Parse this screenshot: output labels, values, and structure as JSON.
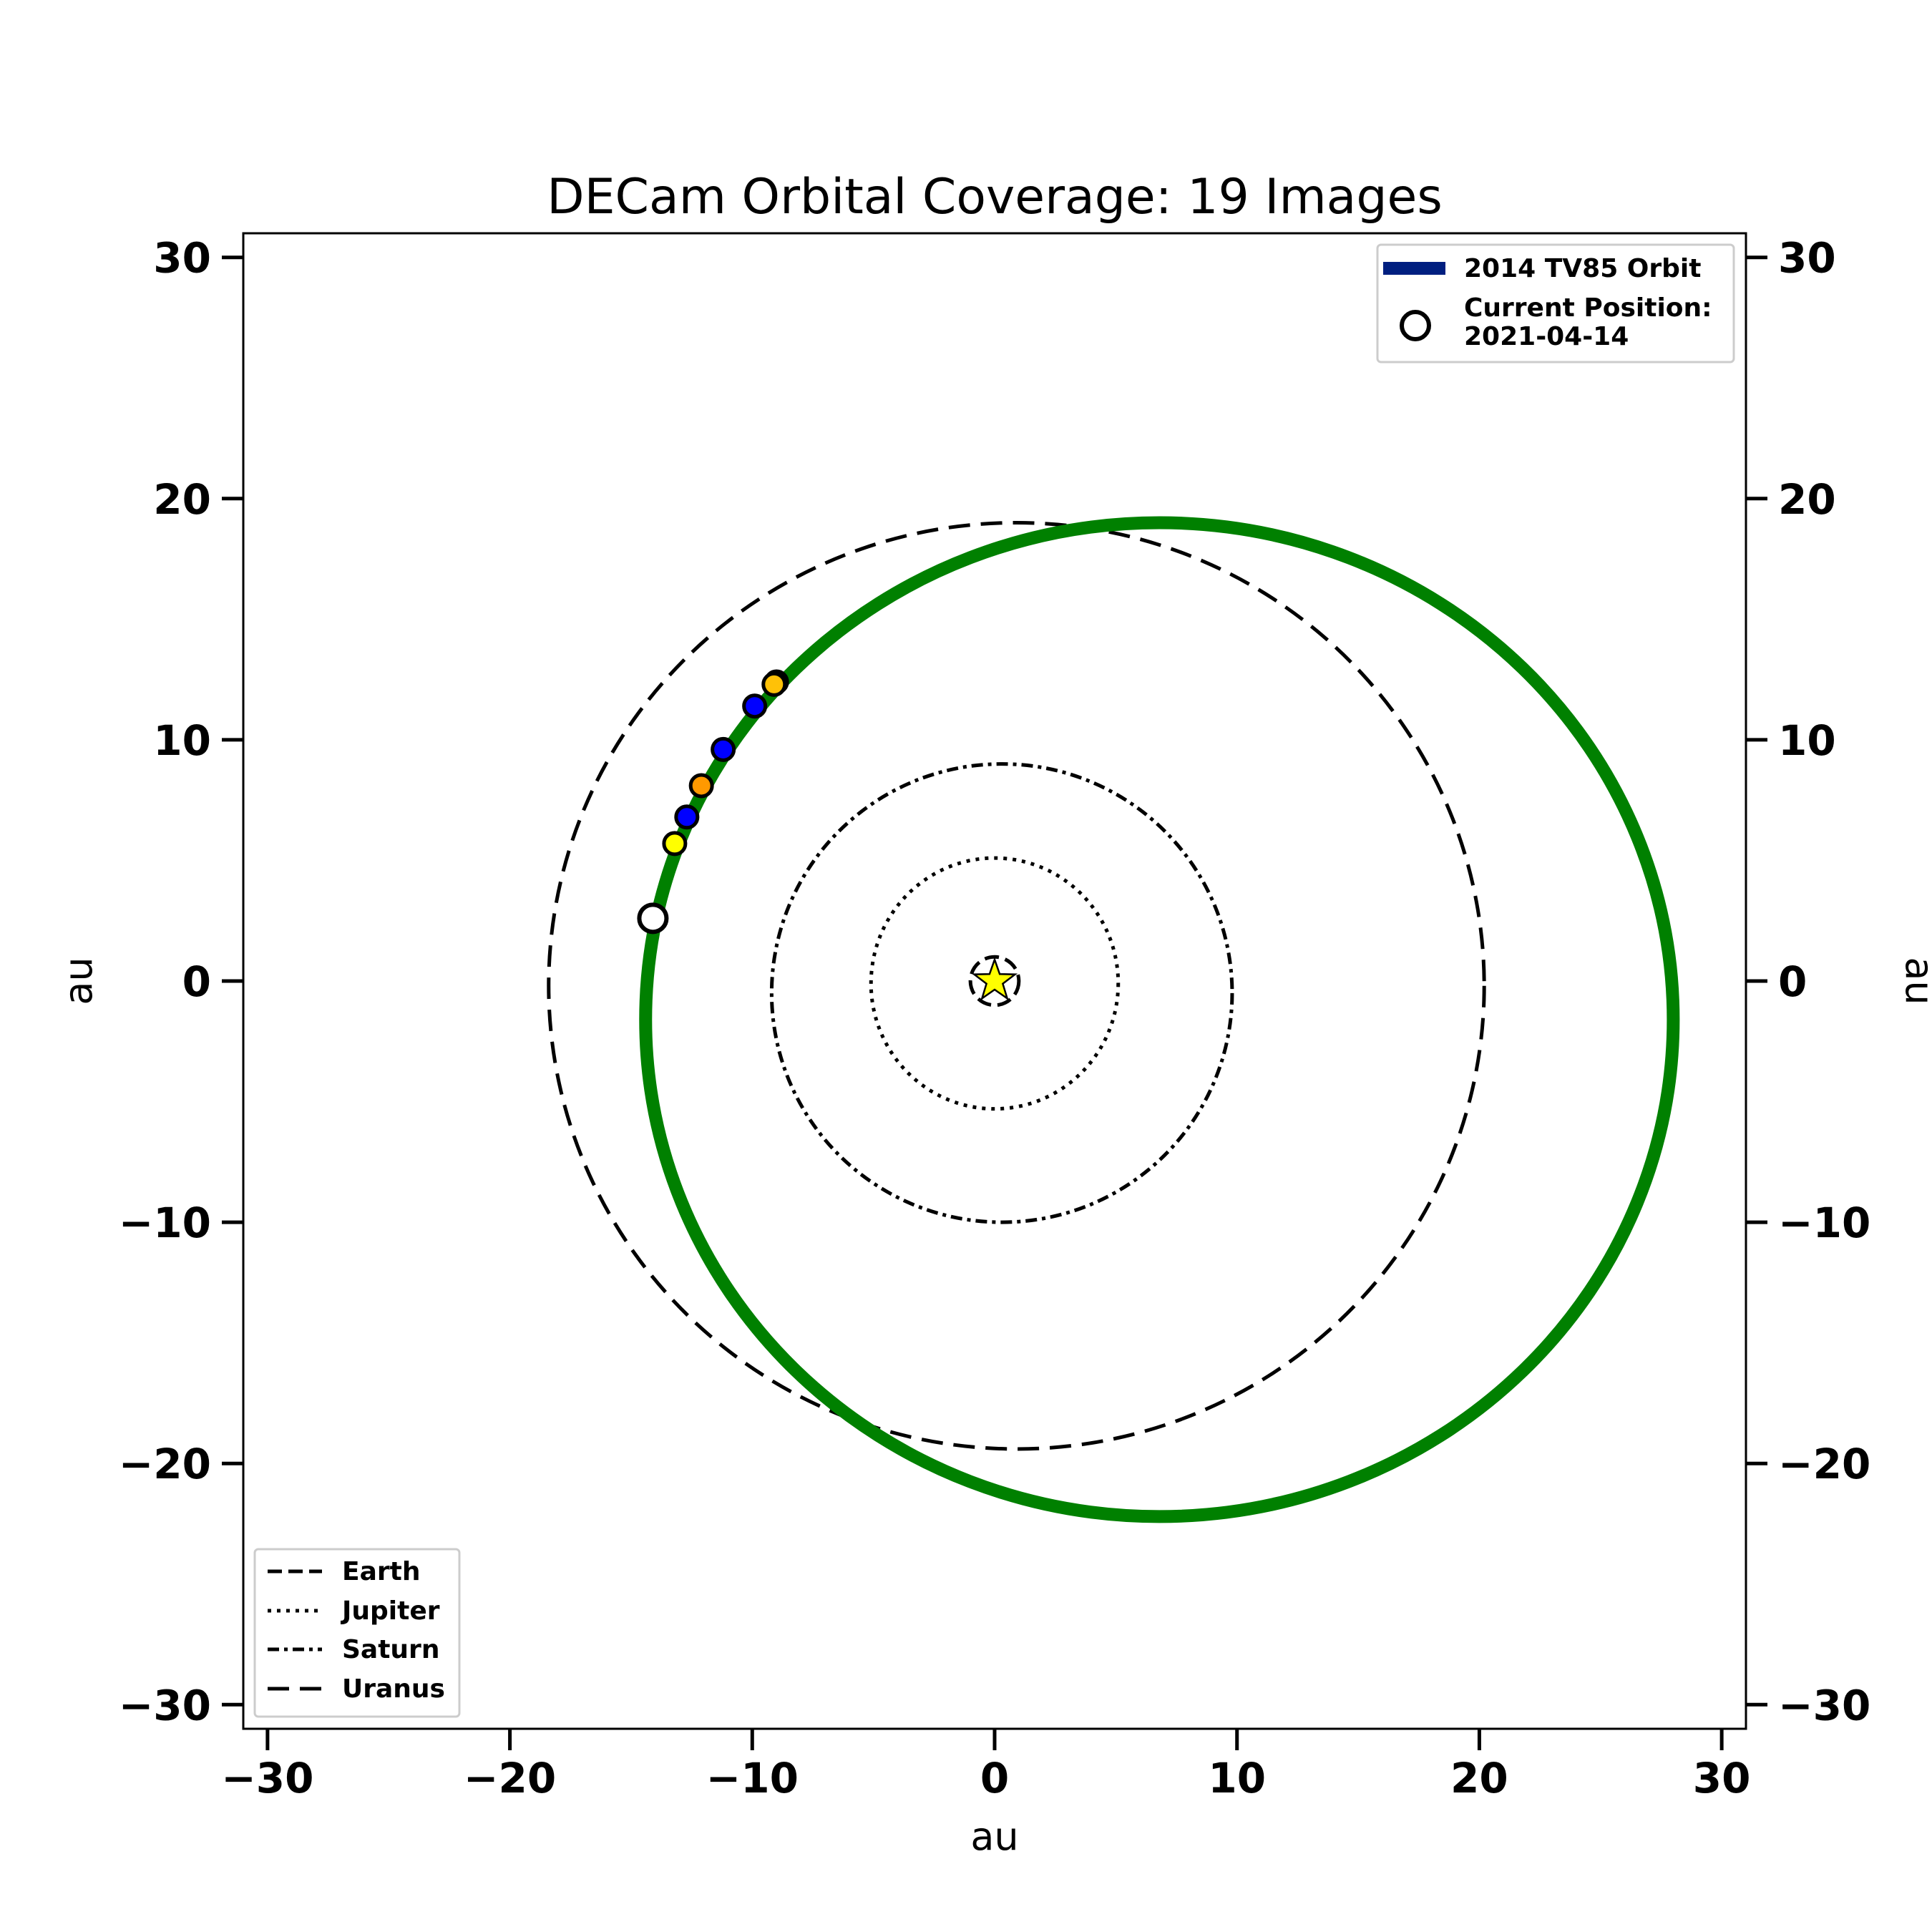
{
  "chart_data": {
    "type": "scatter",
    "title": "DECam Orbital Coverage: 19 Images",
    "xlabel": "au",
    "ylabel": "au",
    "ylabel_right": "au",
    "xlim": [
      -31,
      31
    ],
    "ylim": [
      -31,
      31
    ],
    "xticks": [
      -30,
      -20,
      -10,
      0,
      10,
      20,
      30
    ],
    "yticks": [
      -30,
      -20,
      -10,
      0,
      10,
      20,
      30
    ],
    "xtick_labels": [
      "−30",
      "−20",
      "−10",
      "0",
      "10",
      "20",
      "30"
    ],
    "ytick_labels": [
      "−30",
      "−20",
      "−10",
      "0",
      "10",
      "20",
      "30"
    ],
    "grid": false,
    "sun_marker": {
      "x": 0,
      "y": 0,
      "color": "#ffff00"
    },
    "planet_orbits": [
      {
        "name": "Earth",
        "style": "dashed",
        "cx": 0,
        "cy": 0,
        "rx": 1,
        "ry": 1
      },
      {
        "name": "Jupiter",
        "style": "dotted",
        "cx": 0,
        "cy": -0.1,
        "rx": 5.1,
        "ry": 5.2
      },
      {
        "name": "Saturn",
        "style": "dashdot",
        "cx": 0.3,
        "cy": -0.5,
        "rx": 9.5,
        "ry": 9.5
      },
      {
        "name": "Uranus",
        "style": "longdash",
        "cx": 0.9,
        "cy": -0.2,
        "rx": 19.3,
        "ry": 19.2
      }
    ],
    "target_orbit": {
      "name": "2014 TV85 Orbit",
      "color": "#008000",
      "legend_color": "#001f80",
      "cx": 6.8,
      "cy": -1.6,
      "rx": 21.2,
      "ry": 20.6
    },
    "observations": [
      {
        "x": -9.0,
        "y": 12.4,
        "color": "#000000"
      },
      {
        "x": -9.1,
        "y": 12.3,
        "color": "#ffc107"
      },
      {
        "x": -9.9,
        "y": 11.4,
        "color": "#0000ff"
      },
      {
        "x": -11.2,
        "y": 9.6,
        "color": "#0000ff"
      },
      {
        "x": -12.1,
        "y": 8.1,
        "color": "#ff9900"
      },
      {
        "x": -12.7,
        "y": 6.8,
        "color": "#0000ff"
      },
      {
        "x": -13.2,
        "y": 5.7,
        "color": "#ffff00"
      }
    ],
    "current_position": {
      "x": -14.1,
      "y": 2.6,
      "date": "2021-04-14"
    },
    "legend_top_right": {
      "placement": "top-right",
      "orbit_label": "2014 TV85 Orbit",
      "position_label_line1": "Current Position:",
      "position_label_line2": "2021-04-14"
    },
    "legend_bottom_left": {
      "placement": "bottom-left",
      "entries": [
        "Earth",
        "Jupiter",
        "Saturn",
        "Uranus"
      ]
    }
  }
}
